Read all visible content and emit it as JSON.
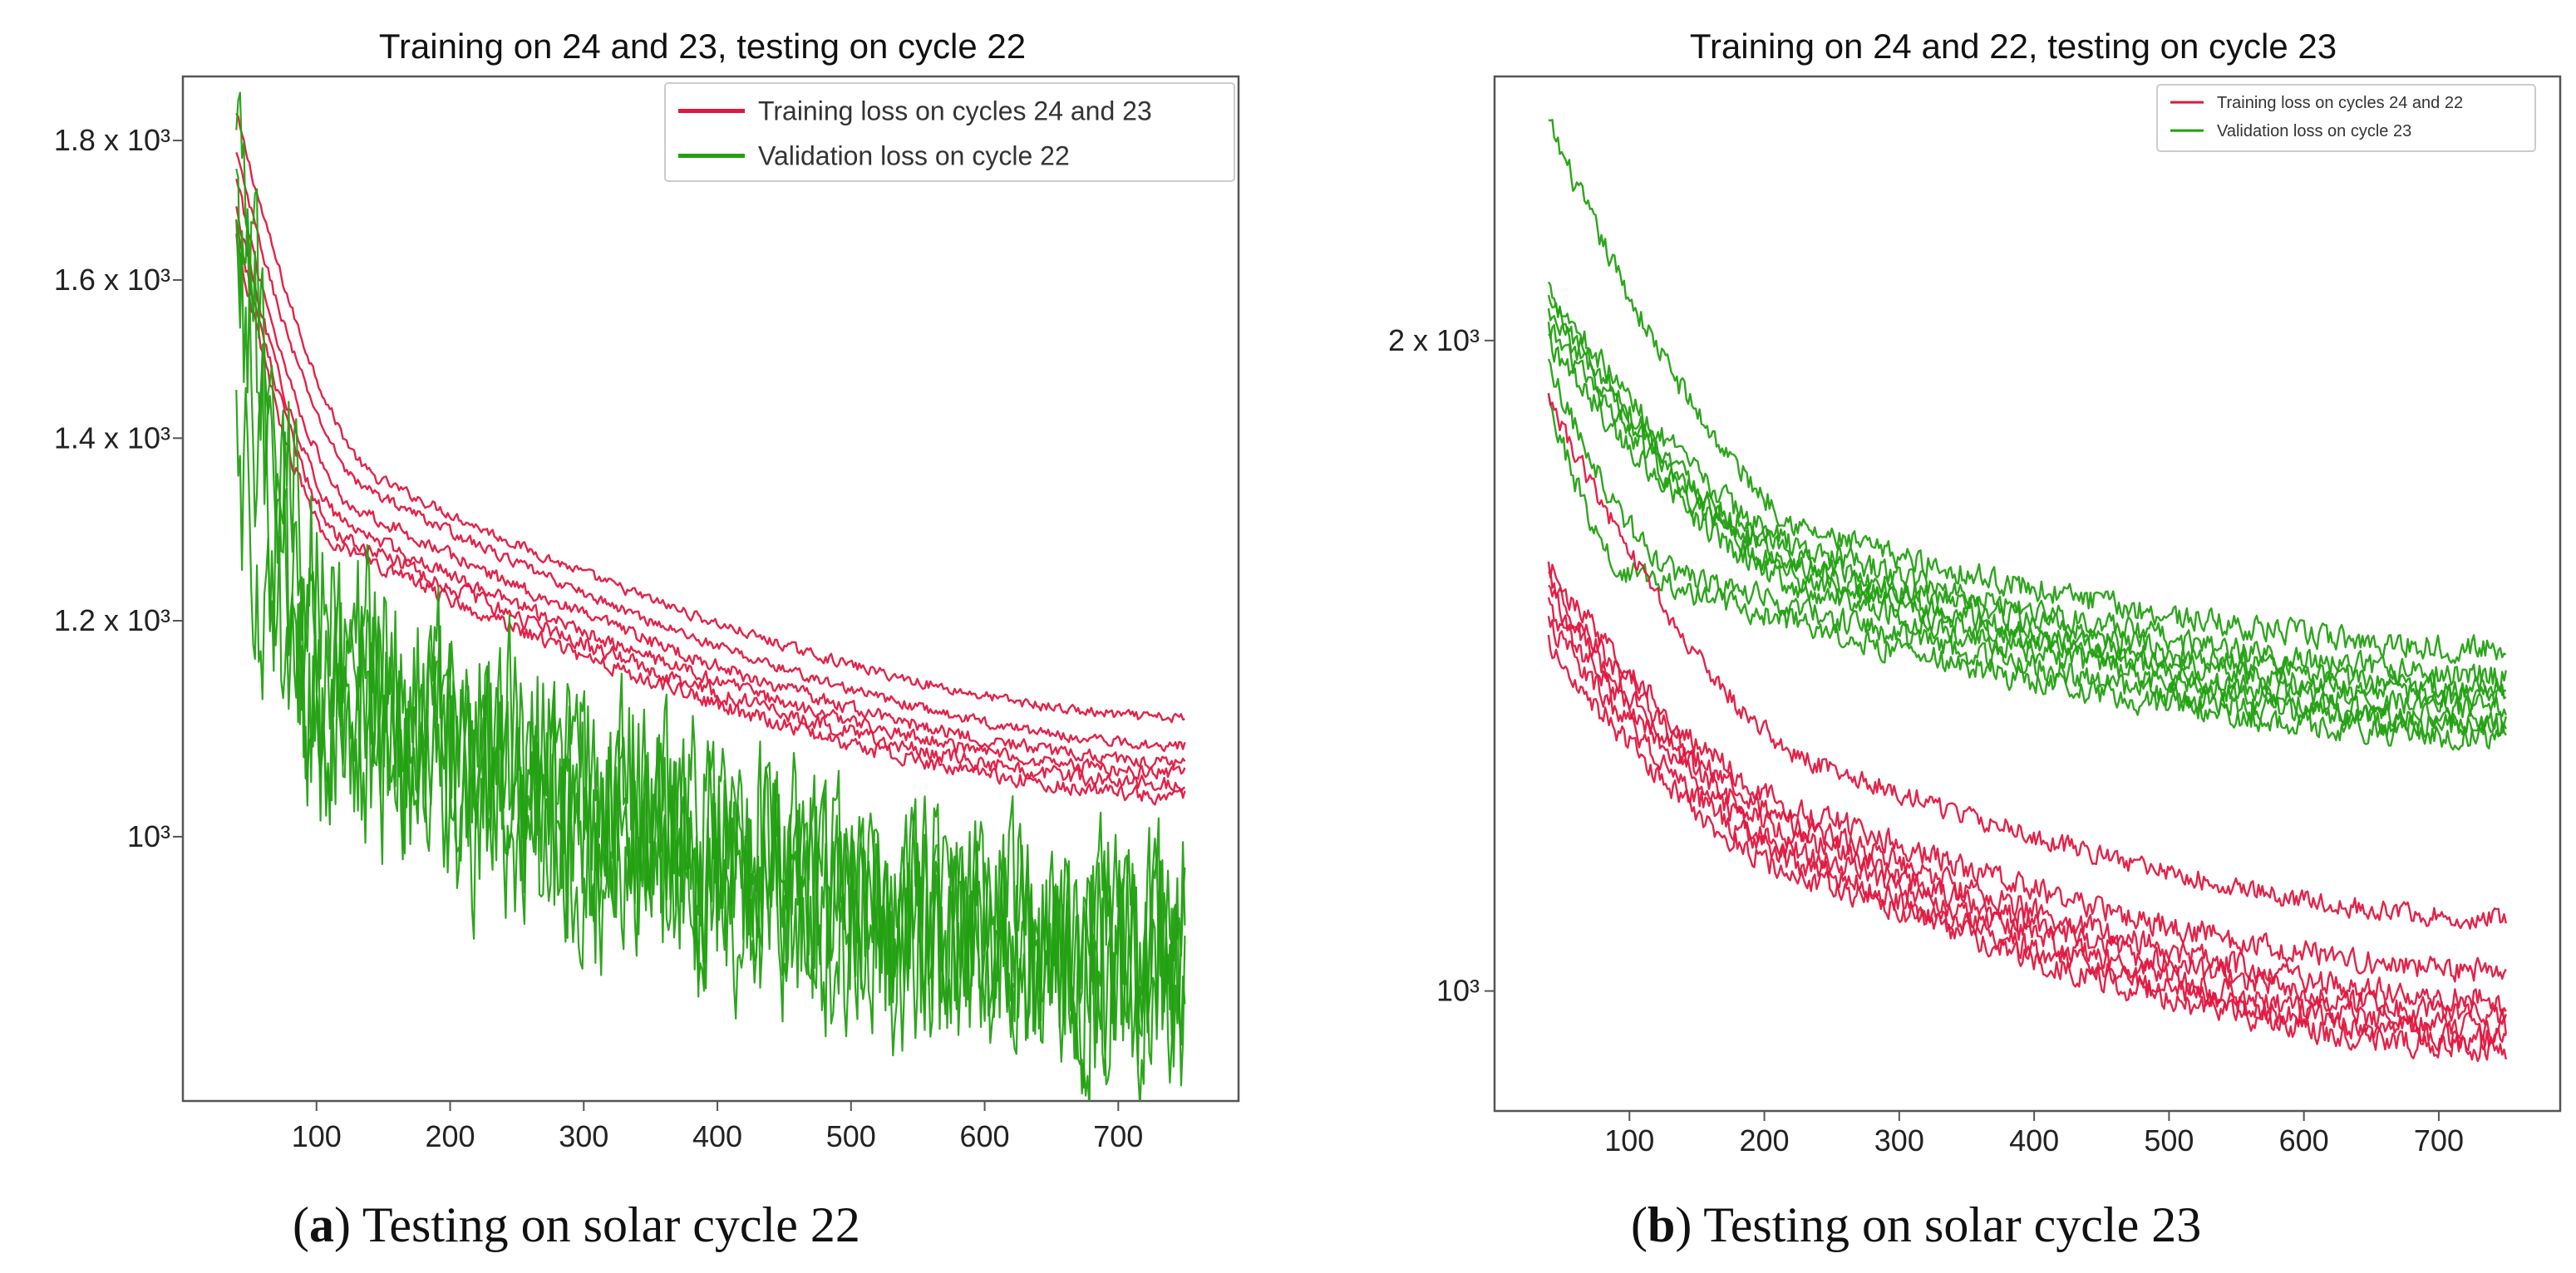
{
  "colors": {
    "training": "#e0173f",
    "validation": "#23a012",
    "axis": "#555555"
  },
  "captions": [
    {
      "label": "a",
      "text": " Testing on solar cycle 22"
    },
    {
      "label": "b",
      "text": " Testing on solar cycle 23"
    }
  ],
  "chart_data": [
    {
      "type": "line",
      "title": "Training on 24 and 23, testing on cycle 22",
      "xlabel": "",
      "ylabel": "",
      "yscale": "log",
      "xlim": [
        0,
        790
      ],
      "ylim": [
        800,
        1900
      ],
      "xticks": [
        100,
        200,
        300,
        400,
        500,
        600,
        700
      ],
      "yticks": [
        {
          "value": 1000,
          "label": "10³"
        },
        {
          "value": 1200,
          "label": "1.2 x 10³"
        },
        {
          "value": 1400,
          "label": "1.4 x 10³"
        },
        {
          "value": 1600,
          "label": "1.6 x 10³"
        },
        {
          "value": 1800,
          "label": "1.8 x 10³"
        }
      ],
      "legend": {
        "position": "top-right",
        "entries": [
          {
            "name": "Training loss on cycles 24 and 23",
            "color_key": "training"
          },
          {
            "name": "Validation loss on cycle 22",
            "color_key": "validation"
          }
        ]
      },
      "x_range": [
        40,
        750
      ],
      "series": [
        {
          "name": "Training loss on cycles 24 and 23",
          "group": "training",
          "start": 1840,
          "mid": [
            150,
            1350
          ],
          "end": 1105,
          "noise": 0.004
        },
        {
          "name": "Training loss on cycles 24 and 23",
          "group": "training",
          "start": 1780,
          "mid": [
            140,
            1340
          ],
          "end": 1080,
          "noise": 0.004
        },
        {
          "name": "Training loss on cycles 24 and 23",
          "group": "training",
          "start": 1740,
          "mid": [
            130,
            1320
          ],
          "end": 1065,
          "noise": 0.005
        },
        {
          "name": "Training loss on cycles 24 and 23",
          "group": "training",
          "start": 1700,
          "mid": [
            125,
            1300
          ],
          "end": 1055,
          "noise": 0.005
        },
        {
          "name": "Training loss on cycles 24 and 23",
          "group": "training",
          "start": 1680,
          "mid": [
            120,
            1290
          ],
          "end": 1045,
          "noise": 0.006
        },
        {
          "name": "Training loss on cycles 24 and 23",
          "group": "training",
          "start": 1660,
          "mid": [
            115,
            1280
          ],
          "end": 1035,
          "noise": 0.006
        },
        {
          "name": "Validation loss on cycle 22",
          "group": "validation",
          "start": 1760,
          "mid": [
            120,
            1180
          ],
          "end": 920,
          "noise": 0.05
        },
        {
          "name": "Validation loss on cycle 22",
          "group": "validation",
          "start": 1700,
          "mid": [
            110,
            1150
          ],
          "end": 905,
          "noise": 0.05
        },
        {
          "name": "Validation loss on cycle 22",
          "group": "validation",
          "start": 1620,
          "mid": [
            100,
            1120
          ],
          "end": 895,
          "noise": 0.055
        },
        {
          "name": "Validation loss on cycle 22",
          "group": "validation",
          "start": 1400,
          "mid": [
            100,
            1100
          ],
          "end": 885,
          "noise": 0.055
        }
      ]
    },
    {
      "type": "line",
      "title": "Training on 24 and 22, testing on cycle 23",
      "xlabel": "",
      "ylabel": "",
      "yscale": "log",
      "xlim": [
        0,
        790
      ],
      "ylim": [
        880,
        2650
      ],
      "xticks": [
        100,
        200,
        300,
        400,
        500,
        600,
        700
      ],
      "yticks": [
        {
          "value": 1000,
          "label": "10³"
        },
        {
          "value": 2000,
          "label": "2 x 10³"
        }
      ],
      "legend": {
        "position": "top-right",
        "entries": [
          {
            "name": "Training loss on cycles 24 and 22",
            "color_key": "training"
          },
          {
            "name": "Validation loss on cycle 23",
            "color_key": "validation"
          }
        ]
      },
      "x_range": [
        40,
        750
      ],
      "series": [
        {
          "name": "Validation loss on cycle 23",
          "group": "validation",
          "start": 2520,
          "mid": [
            250,
            1620
          ],
          "end": 1440,
          "noise": 0.012
        },
        {
          "name": "Validation loss on cycle 23",
          "group": "validation",
          "start": 2120,
          "mid": [
            250,
            1590
          ],
          "end": 1400,
          "noise": 0.012
        },
        {
          "name": "Validation loss on cycle 23",
          "group": "validation",
          "start": 2090,
          "mid": [
            250,
            1570
          ],
          "end": 1380,
          "noise": 0.012
        },
        {
          "name": "Validation loss on cycle 23",
          "group": "validation",
          "start": 2060,
          "mid": [
            250,
            1555
          ],
          "end": 1365,
          "noise": 0.012
        },
        {
          "name": "Validation loss on cycle 23",
          "group": "validation",
          "start": 2030,
          "mid": [
            250,
            1540
          ],
          "end": 1350,
          "noise": 0.012
        },
        {
          "name": "Validation loss on cycle 23",
          "group": "validation",
          "start": 2000,
          "mid": [
            250,
            1525
          ],
          "end": 1335,
          "noise": 0.012
        },
        {
          "name": "Validation loss on cycle 23",
          "group": "validation",
          "start": 1950,
          "mid": [
            140,
            1560
          ],
          "end": 1325,
          "noise": 0.012
        },
        {
          "name": "Validation loss on cycle 23",
          "group": "validation",
          "start": 1880,
          "mid": [
            100,
            1560
          ],
          "end": 1310,
          "noise": 0.012
        },
        {
          "name": "Training loss on cycles 24 and 22",
          "group": "training",
          "start": 1880,
          "mid": [
            250,
            1270
          ],
          "end": 1080,
          "noise": 0.01
        },
        {
          "name": "Training loss on cycles 24 and 22",
          "group": "training",
          "start": 1570,
          "mid": [
            250,
            1200
          ],
          "end": 1020,
          "noise": 0.012
        },
        {
          "name": "Training loss on cycles 24 and 22",
          "group": "training",
          "start": 1550,
          "mid": [
            250,
            1180
          ],
          "end": 990,
          "noise": 0.012
        },
        {
          "name": "Training loss on cycles 24 and 22",
          "group": "training",
          "start": 1530,
          "mid": [
            250,
            1165
          ],
          "end": 975,
          "noise": 0.012
        },
        {
          "name": "Training loss on cycles 24 and 22",
          "group": "training",
          "start": 1510,
          "mid": [
            250,
            1150
          ],
          "end": 960,
          "noise": 0.012
        },
        {
          "name": "Training loss on cycles 24 and 22",
          "group": "training",
          "start": 1480,
          "mid": [
            250,
            1135
          ],
          "end": 950,
          "noise": 0.012
        },
        {
          "name": "Training loss on cycles 24 and 22",
          "group": "training",
          "start": 1450,
          "mid": [
            250,
            1120
          ],
          "end": 940,
          "noise": 0.012
        }
      ]
    }
  ]
}
